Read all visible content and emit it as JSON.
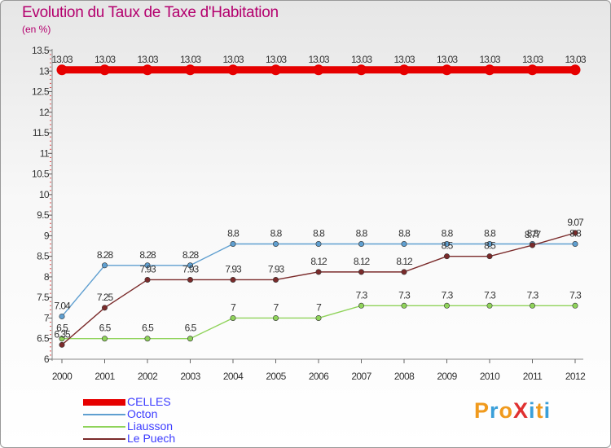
{
  "header": {
    "title": "Evolution du Taux de Taxe d'Habitation",
    "unit": "(en %)"
  },
  "logo": {
    "text": "ProXiti",
    "colors": [
      "#f09a1d",
      "#3a9fd9",
      "#f09a1d",
      "#e03030",
      "#3a9fd9",
      "#f09a1d",
      "#3a9fd9"
    ]
  },
  "chart_data": {
    "type": "line",
    "title": "Evolution du Taux de Taxe d'Habitation",
    "ylabel": "(en %)",
    "xlabel": "",
    "categories": [
      "2000",
      "2001",
      "2002",
      "2003",
      "2004",
      "2005",
      "2006",
      "2007",
      "2008",
      "2009",
      "2010",
      "2011",
      "2012"
    ],
    "ylim": [
      6,
      13.5
    ],
    "yticks": [
      "6",
      "6.5",
      "7",
      "7.5",
      "8",
      "8.5",
      "9",
      "9.5",
      "10",
      "10.5",
      "11",
      "11.5",
      "12",
      "12.5",
      "13",
      "13.5"
    ],
    "grid": false,
    "legend_position": "bottom-left",
    "series": [
      {
        "name": "CELLES",
        "color": "#e60000",
        "values": [
          13.03,
          13.03,
          13.03,
          13.03,
          13.03,
          13.03,
          13.03,
          13.03,
          13.03,
          13.03,
          13.03,
          13.03,
          13.03
        ],
        "labels": [
          "13.03",
          "13.03",
          "13.03",
          "13.03",
          "13.03",
          "13.03",
          "13.03",
          "13.03",
          "13.03",
          "13.03",
          "13.03",
          "13.03",
          "13.03"
        ]
      },
      {
        "name": "Octon",
        "color": "#5f9fd0",
        "values": [
          7.04,
          8.28,
          8.28,
          8.28,
          8.8,
          8.8,
          8.8,
          8.8,
          8.8,
          8.8,
          8.8,
          8.8,
          8.8
        ],
        "labels": [
          "7.04",
          "8.28",
          "8.28",
          "8.28",
          "8.8",
          "8.8",
          "8.8",
          "8.8",
          "8.8",
          "8.8",
          "8.8",
          "8.8",
          "8.8"
        ]
      },
      {
        "name": "Liausson",
        "color": "#8fd35a",
        "values": [
          6.5,
          6.5,
          6.5,
          6.5,
          7,
          7,
          7,
          7.3,
          7.3,
          7.3,
          7.3,
          7.3,
          7.3
        ],
        "labels": [
          "6.5",
          "6.5",
          "6.5",
          "6.5",
          "7",
          "7",
          "7",
          "7.3",
          "7.3",
          "7.3",
          "7.3",
          "7.3",
          "7.3"
        ]
      },
      {
        "name": "Le Puech",
        "color": "#7a2a2a",
        "values": [
          6.35,
          7.25,
          7.93,
          7.93,
          7.93,
          7.93,
          8.12,
          8.12,
          8.12,
          8.5,
          8.5,
          8.77,
          9.07
        ],
        "labels": [
          "6.35",
          "7.25",
          "7.93",
          "7.93",
          "7.93",
          "7.93",
          "8.12",
          "8.12",
          "8.12",
          "8.5",
          "8.5",
          "8.77",
          "9.07"
        ]
      }
    ]
  }
}
